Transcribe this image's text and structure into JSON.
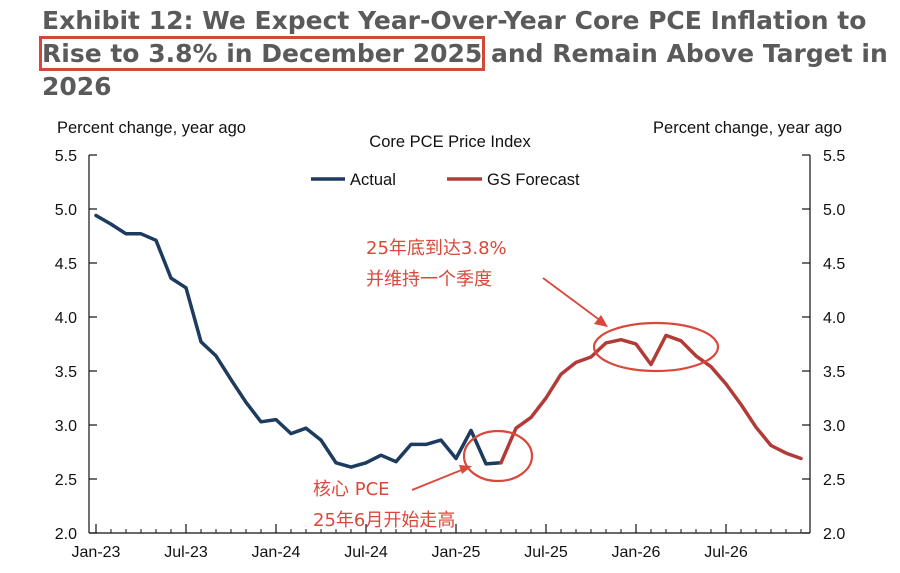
{
  "title": {
    "before": "Exhibit 12: We Expect Year-Over-Year Core PCE Inflation to ",
    "highlight": "Rise to 3.8% in December 2025",
    "after": " and Remain Above Target in 2026"
  },
  "colors": {
    "actual": "#1d3a5f",
    "forecast": "#b23b37",
    "annotation": "#d9483b",
    "title": "#5a5a5a"
  },
  "chart_data": {
    "type": "line",
    "title": "Core PCE Price Index",
    "ylabel_left": "Percent change, year ago",
    "ylabel_right": "Percent change, year ago",
    "ylim": [
      2.0,
      5.5
    ],
    "yticks": [
      "2.0",
      "2.5",
      "3.0",
      "3.5",
      "4.0",
      "4.5",
      "5.0",
      "5.5"
    ],
    "xticks": [
      "Jan-23",
      "Jul-23",
      "Jan-24",
      "Jul-24",
      "Jan-25",
      "Jul-25",
      "Jan-26",
      "Jul-26"
    ],
    "grid": false,
    "legend_position": "top-center",
    "series": [
      {
        "name": "Actual",
        "x": [
          "2023-01",
          "2023-02",
          "2023-03",
          "2023-04",
          "2023-05",
          "2023-06",
          "2023-07",
          "2023-08",
          "2023-09",
          "2023-10",
          "2023-11",
          "2023-12",
          "2024-01",
          "2024-02",
          "2024-03",
          "2024-04",
          "2024-05",
          "2024-06",
          "2024-07",
          "2024-08",
          "2024-09",
          "2024-10",
          "2024-11",
          "2024-12",
          "2025-01",
          "2025-02",
          "2025-03",
          "2025-04"
        ],
        "values": [
          4.94,
          4.86,
          4.77,
          4.77,
          4.71,
          4.36,
          4.27,
          3.77,
          3.64,
          3.42,
          3.21,
          3.03,
          3.05,
          2.92,
          2.97,
          2.86,
          2.65,
          2.61,
          2.65,
          2.72,
          2.66,
          2.82,
          2.82,
          2.86,
          2.69,
          2.95,
          2.64,
          2.65
        ]
      },
      {
        "name": "GS Forecast",
        "x": [
          "2025-04",
          "2025-05",
          "2025-06",
          "2025-07",
          "2025-08",
          "2025-09",
          "2025-10",
          "2025-11",
          "2025-12",
          "2026-01",
          "2026-02",
          "2026-03",
          "2026-04",
          "2026-05",
          "2026-06",
          "2026-07",
          "2026-08",
          "2026-09",
          "2026-10",
          "2026-11",
          "2026-12"
        ],
        "values": [
          2.65,
          2.97,
          3.07,
          3.25,
          3.47,
          3.58,
          3.63,
          3.76,
          3.79,
          3.75,
          3.56,
          3.83,
          3.78,
          3.64,
          3.54,
          3.38,
          3.19,
          2.98,
          2.81,
          2.74,
          2.69
        ]
      }
    ],
    "annotations": [
      {
        "lines": [
          "25年底到达3.8%",
          "并维持一个季度"
        ]
      },
      {
        "lines": [
          "核心 PCE",
          "25年6月开始走高"
        ]
      }
    ]
  }
}
